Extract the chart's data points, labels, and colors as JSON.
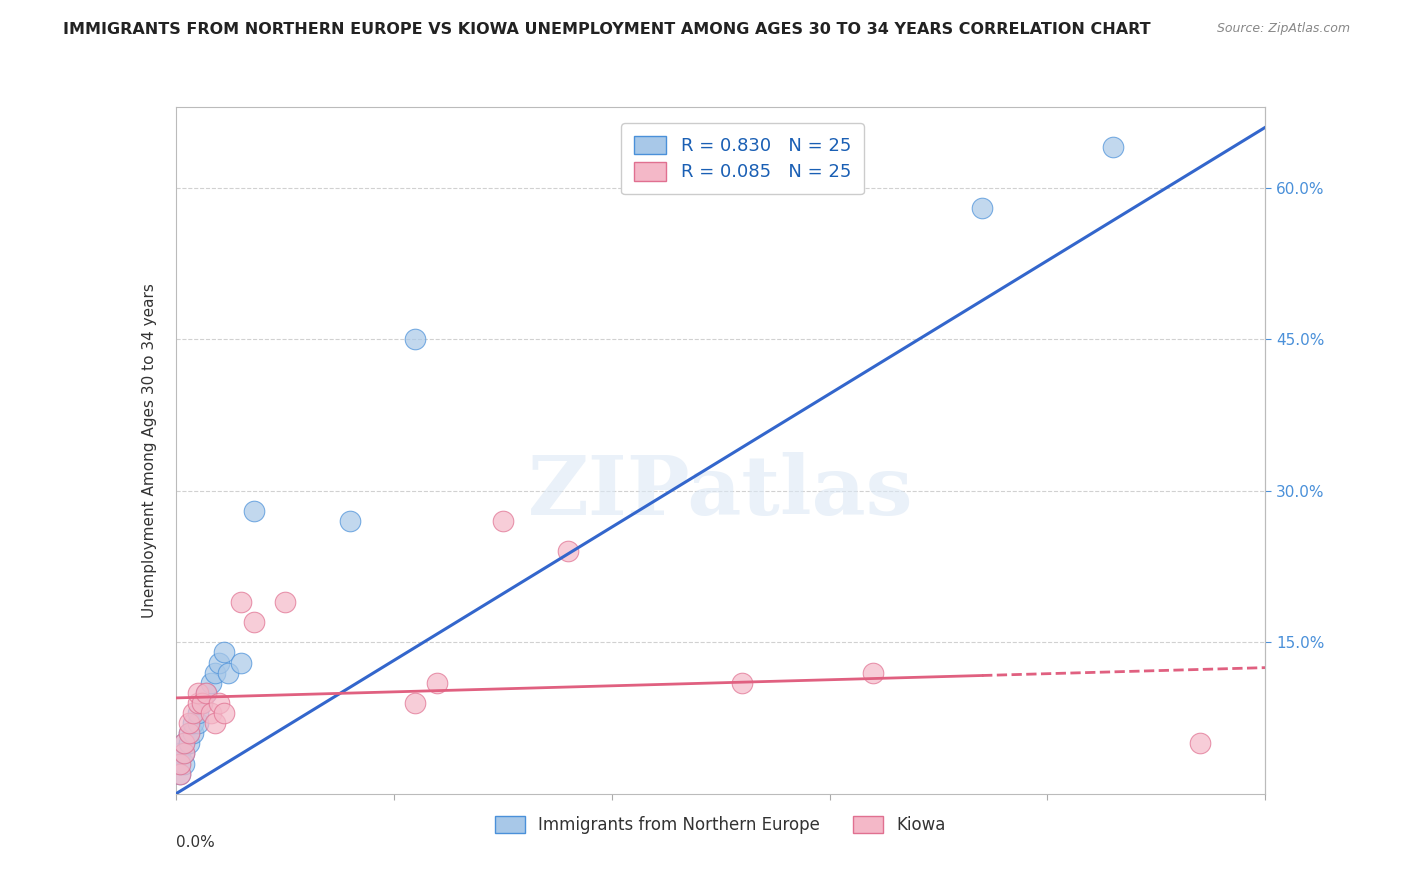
{
  "title": "IMMIGRANTS FROM NORTHERN EUROPE VS KIOWA UNEMPLOYMENT AMONG AGES 30 TO 34 YEARS CORRELATION CHART",
  "source": "Source: ZipAtlas.com",
  "ylabel": "Unemployment Among Ages 30 to 34 years",
  "legend1_label": "R = 0.830   N = 25",
  "legend2_label": "R = 0.085   N = 25",
  "legend_bottom1": "Immigrants from Northern Europe",
  "legend_bottom2": "Kiowa",
  "blue_color": "#a8c8e8",
  "blue_edge_color": "#4a90d9",
  "pink_color": "#f4b8c8",
  "pink_edge_color": "#e07090",
  "blue_line_color": "#3366cc",
  "pink_line_color": "#e06080",
  "watermark": "ZIPatlas",
  "blue_x": [
    0.001,
    0.001,
    0.001,
    0.002,
    0.002,
    0.002,
    0.003,
    0.003,
    0.004,
    0.004,
    0.005,
    0.005,
    0.006,
    0.007,
    0.008,
    0.009,
    0.01,
    0.011,
    0.012,
    0.015,
    0.018,
    0.04,
    0.055,
    0.185,
    0.215
  ],
  "blue_y": [
    0.02,
    0.03,
    0.04,
    0.03,
    0.04,
    0.05,
    0.05,
    0.06,
    0.06,
    0.07,
    0.07,
    0.08,
    0.09,
    0.1,
    0.11,
    0.12,
    0.13,
    0.14,
    0.12,
    0.13,
    0.28,
    0.27,
    0.45,
    0.58,
    0.64
  ],
  "pink_x": [
    0.001,
    0.001,
    0.002,
    0.002,
    0.003,
    0.003,
    0.004,
    0.005,
    0.005,
    0.006,
    0.007,
    0.008,
    0.009,
    0.01,
    0.011,
    0.015,
    0.018,
    0.025,
    0.055,
    0.06,
    0.075,
    0.09,
    0.13,
    0.16,
    0.235
  ],
  "pink_y": [
    0.02,
    0.03,
    0.04,
    0.05,
    0.06,
    0.07,
    0.08,
    0.09,
    0.1,
    0.09,
    0.1,
    0.08,
    0.07,
    0.09,
    0.08,
    0.19,
    0.17,
    0.19,
    0.09,
    0.11,
    0.27,
    0.24,
    0.11,
    0.12,
    0.05
  ],
  "xmin": 0.0,
  "xmax": 0.25,
  "ymin": 0.0,
  "ymax": 0.68,
  "right_yticks": [
    0.15,
    0.3,
    0.45,
    0.6
  ],
  "right_yticklabels": [
    "15.0%",
    "30.0%",
    "45.0%",
    "60.0%"
  ],
  "blue_line_x0": 0.0,
  "blue_line_y0": 0.0,
  "blue_line_x1": 0.25,
  "blue_line_y1": 0.66,
  "pink_line_x0": 0.0,
  "pink_line_y0": 0.095,
  "pink_line_x1": 0.25,
  "pink_line_y1": 0.125
}
